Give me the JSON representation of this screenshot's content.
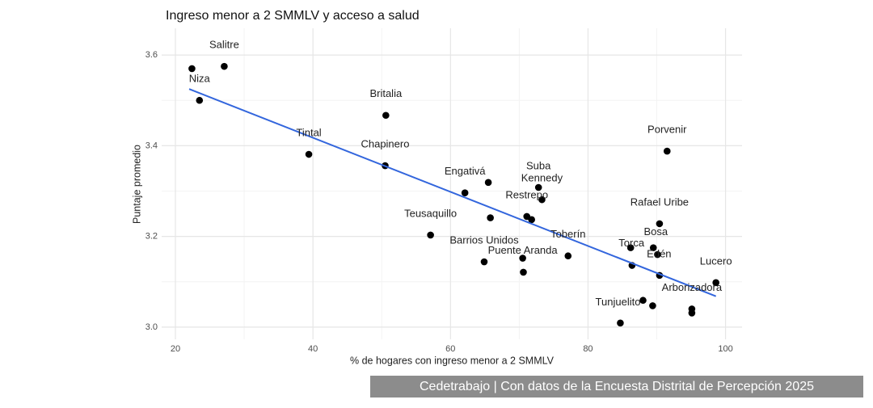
{
  "chart_data": {
    "type": "scatter",
    "title": "Ingreso menor a 2 SMMLV y acceso a salud",
    "x_label": "% de hogares con ingreso menor a 2 SMMLV",
    "y_label": "Puntaje promedio",
    "caption": "Cedetrabajo | Con datos de la Encuesta Distrital de Percepción 2025",
    "xlim": [
      18,
      102.4
    ],
    "ylim": [
      2.973,
      3.659
    ],
    "xticks": [
      20,
      40,
      60,
      80,
      100
    ],
    "yticks": [
      {
        "value": 3,
        "label": "3.0"
      },
      3.2,
      3.4,
      3.6
    ],
    "x_minor_grid": [
      30,
      50,
      70,
      90
    ],
    "y_minor_grid": [
      3.1,
      3.3,
      3.5
    ],
    "grid": true,
    "color": "#000000",
    "x": [
      22.4,
      27.1,
      23.5,
      50.6,
      39.4,
      50.5,
      91.5,
      62.1,
      65.5,
      72.8,
      73.3,
      71.1,
      71.8,
      65.8,
      57.1,
      90.4,
      89.5,
      90.1,
      86.2,
      86.4,
      90.4,
      77.1,
      64.9,
      70.5,
      70.6,
      98.6,
      95.1,
      95.1,
      88.0,
      89.4,
      84.7
    ],
    "values": [
      3.57,
      3.575,
      3.5,
      3.467,
      3.381,
      3.356,
      3.388,
      3.296,
      3.319,
      3.308,
      3.281,
      3.244,
      3.237,
      3.241,
      3.203,
      3.228,
      3.175,
      3.16,
      3.175,
      3.136,
      3.114,
      3.157,
      3.144,
      3.152,
      3.121,
      3.098,
      3.04,
      3.031,
      3.059,
      3.047,
      3.009
    ],
    "labels": [
      null,
      "Salitre",
      "Niza",
      "Britalia",
      "Tintal",
      "Chapinero",
      "Porvenir",
      "Engativá",
      null,
      "Suba",
      "Kennedy",
      "Restrepo",
      null,
      null,
      "Teusaquillo",
      "Rafael Uribe",
      "Bosa",
      "Edén",
      "Torca",
      null,
      null,
      "Toberín",
      "Barrios Unidos",
      "Puente Aranda",
      null,
      "Lucero",
      "Arborizadora",
      null,
      "Tunjuelito",
      null,
      null
    ],
    "trend_line": {
      "color": "#3366dd",
      "x": [
        22,
        98.6
      ],
      "values": [
        3.525,
        3.068
      ]
    }
  }
}
